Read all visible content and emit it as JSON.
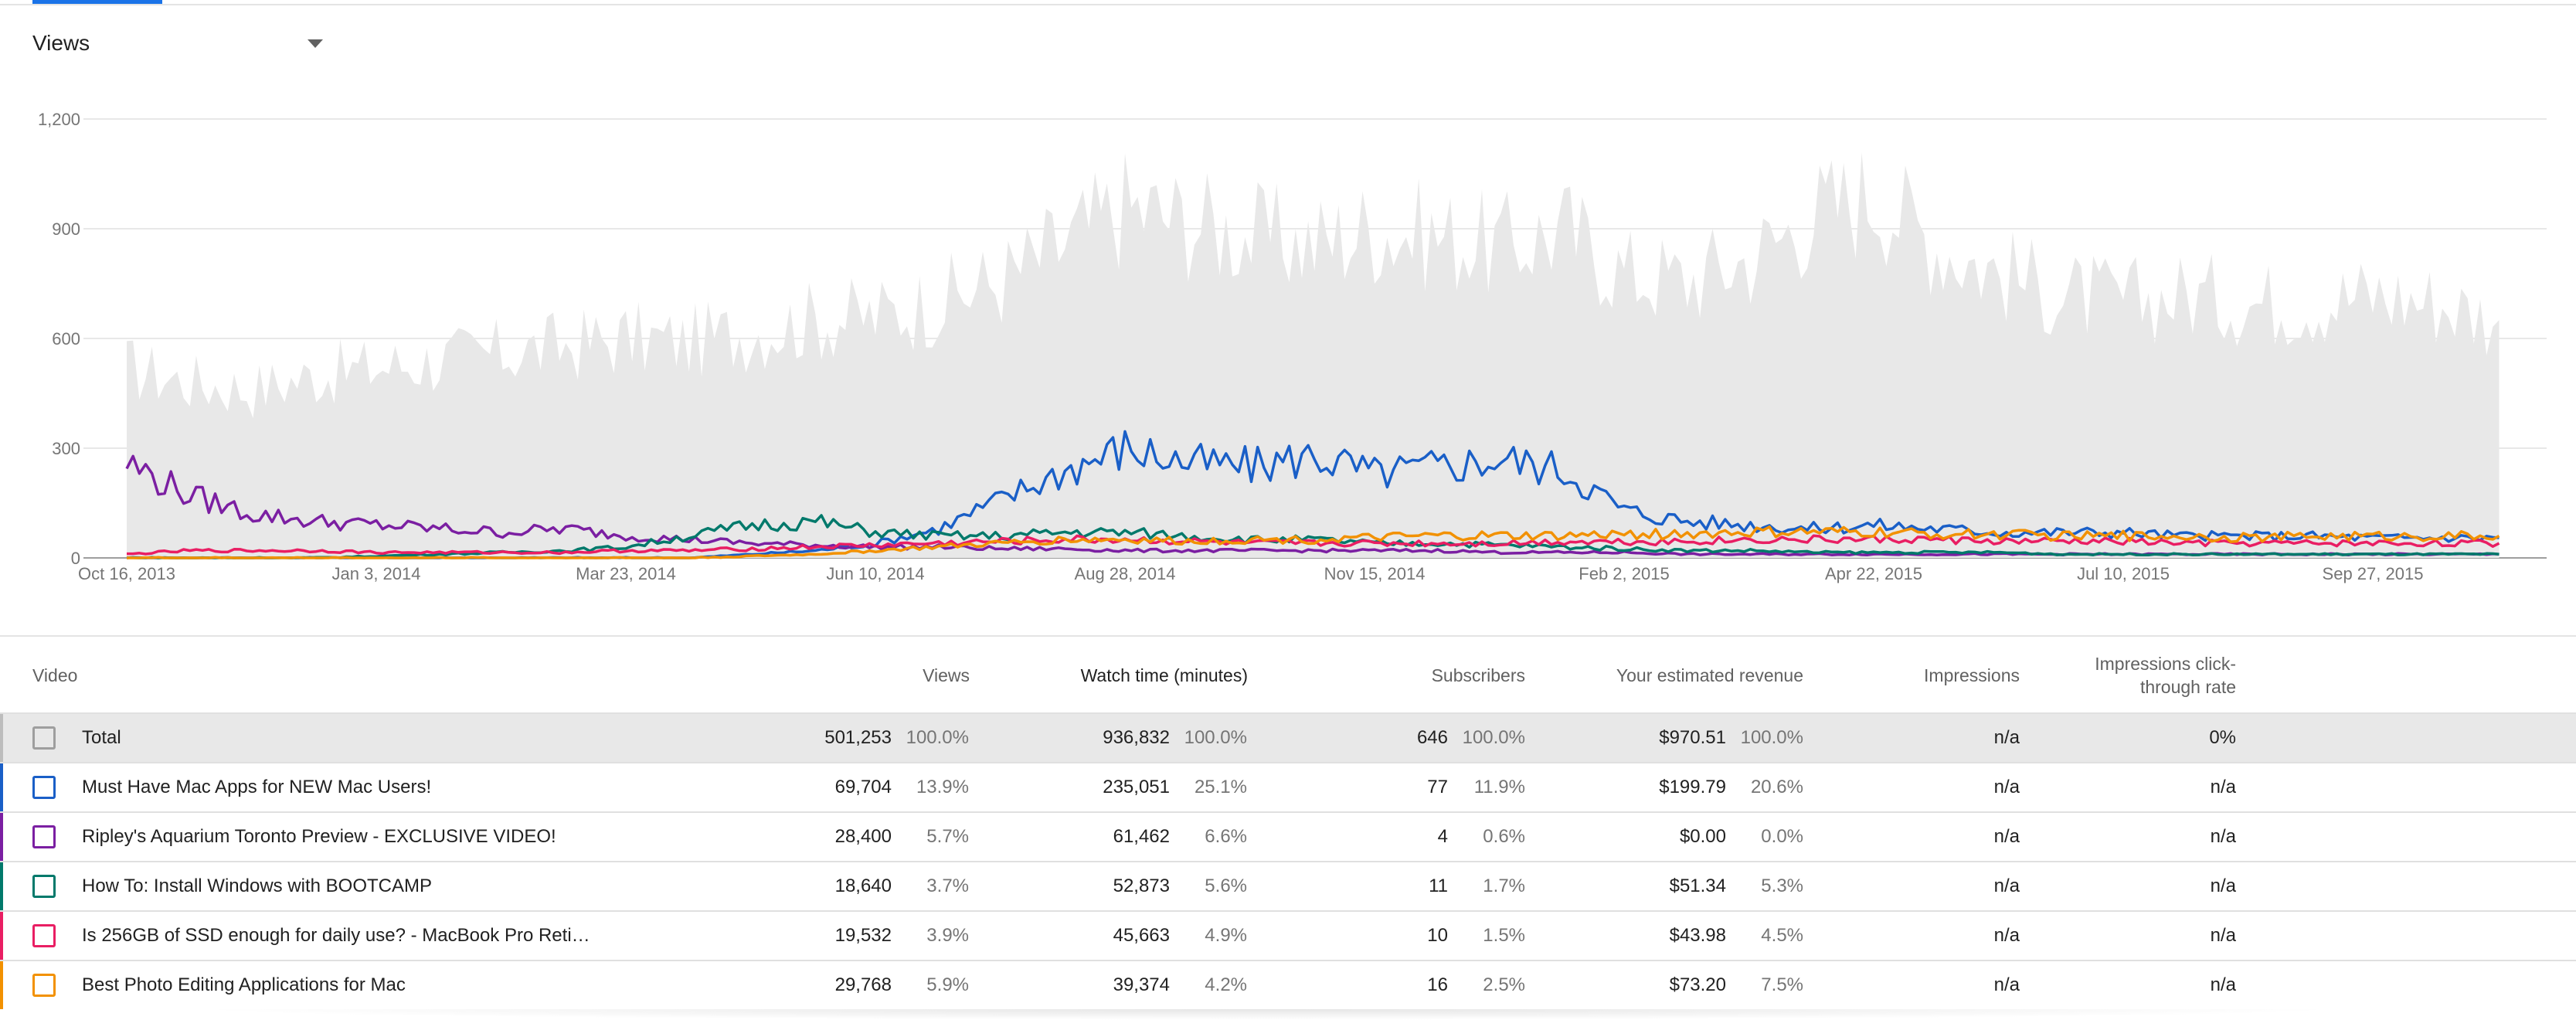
{
  "metric_select": {
    "label": "Views"
  },
  "chart_data": {
    "type": "line",
    "title": "",
    "xlabel": "",
    "ylabel": "",
    "ylim": [
      0,
      1200
    ],
    "y_ticks": [
      "0",
      "300",
      "600",
      "900",
      "1,200"
    ],
    "y_tick_values": [
      0,
      300,
      600,
      900,
      1200
    ],
    "x_tick_labels": [
      "Oct 16, 2013",
      "Jan 3, 2014",
      "Mar 23, 2014",
      "Jun 10, 2014",
      "Aug 28, 2014",
      "Nov 15, 2014",
      "Feb 2, 2015",
      "Apr 22, 2015",
      "Jul 10, 2015",
      "Sep 27, 2015"
    ],
    "x": [
      "2013-10-16",
      "2013-11-05",
      "2013-11-25",
      "2013-12-15",
      "2014-01-03",
      "2014-01-23",
      "2014-02-12",
      "2014-03-04",
      "2014-03-23",
      "2014-04-12",
      "2014-05-02",
      "2014-05-22",
      "2014-06-10",
      "2014-06-30",
      "2014-07-20",
      "2014-08-09",
      "2014-08-28",
      "2014-09-17",
      "2014-10-07",
      "2014-10-27",
      "2014-11-15",
      "2014-12-05",
      "2014-12-25",
      "2015-01-14",
      "2015-02-02",
      "2015-02-22",
      "2015-03-14",
      "2015-04-03",
      "2015-04-22",
      "2015-05-12",
      "2015-06-01",
      "2015-06-21",
      "2015-07-10",
      "2015-07-30",
      "2015-08-19",
      "2015-09-08",
      "2015-09-27",
      "2015-10-17",
      "2015-11-06"
    ],
    "series": [
      {
        "name": "Total",
        "kind": "area",
        "color": "#e8e8e8",
        "values": [
          520,
          480,
          460,
          500,
          520,
          540,
          560,
          580,
          600,
          590,
          620,
          650,
          660,
          700,
          760,
          860,
          960,
          920,
          880,
          860,
          900,
          880,
          850,
          900,
          780,
          760,
          820,
          940,
          1000,
          860,
          780,
          720,
          700,
          720,
          700,
          700,
          720,
          700,
          650
        ]
      },
      {
        "name": "Must Have Mac Apps for NEW Mac Users!",
        "color": "#1a5fc7",
        "values": [
          0,
          0,
          0,
          0,
          0,
          0,
          0,
          0,
          0,
          0,
          10,
          20,
          40,
          80,
          160,
          240,
          300,
          260,
          250,
          280,
          230,
          250,
          270,
          240,
          130,
          100,
          90,
          80,
          90,
          80,
          70,
          70,
          70,
          60,
          60,
          60,
          55,
          55,
          55
        ]
      },
      {
        "name": "Ripley's Aquarium Toronto Preview - EXCLUSIVE VIDEO!",
        "color": "#7b1fa2",
        "values": [
          260,
          170,
          120,
          100,
          90,
          80,
          70,
          80,
          60,
          50,
          40,
          35,
          30,
          30,
          25,
          25,
          20,
          20,
          20,
          20,
          20,
          20,
          15,
          15,
          15,
          10,
          10,
          10,
          10,
          10,
          10,
          10,
          10,
          10,
          10,
          10,
          10,
          10,
          10
        ]
      },
      {
        "name": "How To: Install Windows with BOOTCAMP",
        "color": "#00796b",
        "values": [
          0,
          0,
          0,
          0,
          5,
          10,
          15,
          20,
          30,
          60,
          90,
          100,
          70,
          60,
          60,
          70,
          70,
          60,
          50,
          50,
          40,
          40,
          35,
          30,
          25,
          20,
          20,
          15,
          15,
          15,
          15,
          10,
          10,
          10,
          10,
          10,
          10,
          10,
          10
        ]
      },
      {
        "name": "Is 256GB of SSD enough for daily use? - MacBook Pro Reti…",
        "color": "#e91e63",
        "values": [
          10,
          20,
          20,
          20,
          15,
          15,
          15,
          15,
          20,
          20,
          25,
          30,
          35,
          40,
          45,
          50,
          50,
          45,
          40,
          40,
          40,
          40,
          40,
          45,
          45,
          45,
          50,
          50,
          50,
          50,
          45,
          45,
          45,
          40,
          40,
          40,
          40,
          40,
          40
        ]
      },
      {
        "name": "Best Photo Editing Applications for Mac",
        "color": "#f29100",
        "values": [
          0,
          0,
          0,
          0,
          0,
          0,
          0,
          0,
          0,
          0,
          5,
          10,
          20,
          30,
          40,
          50,
          50,
          45,
          50,
          50,
          55,
          60,
          60,
          60,
          65,
          65,
          70,
          70,
          70,
          65,
          65,
          60,
          60,
          60,
          55,
          60,
          60,
          60,
          60
        ]
      }
    ]
  },
  "table": {
    "headers": {
      "video": "Video",
      "views": "Views",
      "watch_time": "Watch time (minutes)",
      "subscribers": "Subscribers",
      "revenue": "Your estimated revenue",
      "impressions": "Impressions",
      "ctr_line1": "Impressions click-",
      "ctr_line2": "through rate"
    },
    "rows": [
      {
        "title": "Total",
        "color": "#9e9e9e",
        "views": "501,253",
        "views_pct": "100.0%",
        "watch": "936,832",
        "watch_pct": "100.0%",
        "subs": "646",
        "subs_pct": "100.0%",
        "revenue": "$970.51",
        "revenue_pct": "100.0%",
        "impressions": "n/a",
        "ctr": "0%"
      },
      {
        "title": "Must Have Mac Apps for NEW Mac Users!",
        "color": "#1a5fc7",
        "views": "69,704",
        "views_pct": "13.9%",
        "watch": "235,051",
        "watch_pct": "25.1%",
        "subs": "77",
        "subs_pct": "11.9%",
        "revenue": "$199.79",
        "revenue_pct": "20.6%",
        "impressions": "n/a",
        "ctr": "n/a"
      },
      {
        "title": "Ripley's Aquarium Toronto Preview - EXCLUSIVE VIDEO!",
        "color": "#7b1fa2",
        "views": "28,400",
        "views_pct": "5.7%",
        "watch": "61,462",
        "watch_pct": "6.6%",
        "subs": "4",
        "subs_pct": "0.6%",
        "revenue": "$0.00",
        "revenue_pct": "0.0%",
        "impressions": "n/a",
        "ctr": "n/a"
      },
      {
        "title": "How To: Install Windows with BOOTCAMP",
        "color": "#00796b",
        "views": "18,640",
        "views_pct": "3.7%",
        "watch": "52,873",
        "watch_pct": "5.6%",
        "subs": "11",
        "subs_pct": "1.7%",
        "revenue": "$51.34",
        "revenue_pct": "5.3%",
        "impressions": "n/a",
        "ctr": "n/a"
      },
      {
        "title": "Is 256GB of SSD enough for daily use? - MacBook Pro Reti…",
        "color": "#e91e63",
        "views": "19,532",
        "views_pct": "3.9%",
        "watch": "45,663",
        "watch_pct": "4.9%",
        "subs": "10",
        "subs_pct": "1.5%",
        "revenue": "$43.98",
        "revenue_pct": "4.5%",
        "impressions": "n/a",
        "ctr": "n/a"
      },
      {
        "title": "Best Photo Editing Applications for Mac",
        "color": "#f29100",
        "views": "29,768",
        "views_pct": "5.9%",
        "watch": "39,374",
        "watch_pct": "4.2%",
        "subs": "16",
        "subs_pct": "2.5%",
        "revenue": "$73.20",
        "revenue_pct": "7.5%",
        "impressions": "n/a",
        "ctr": "n/a"
      }
    ]
  }
}
